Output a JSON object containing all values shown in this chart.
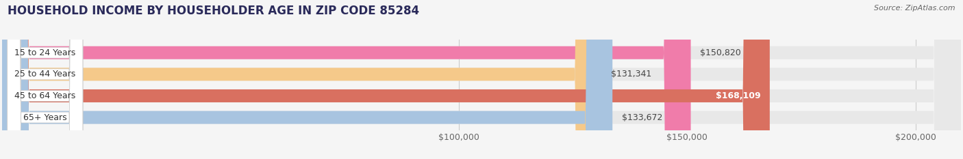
{
  "title": "HOUSEHOLD INCOME BY HOUSEHOLDER AGE IN ZIP CODE 85284",
  "source": "Source: ZipAtlas.com",
  "categories": [
    "15 to 24 Years",
    "25 to 44 Years",
    "45 to 64 Years",
    "65+ Years"
  ],
  "values": [
    150820,
    131341,
    168109,
    133672
  ],
  "labels": [
    "$150,820",
    "$131,341",
    "$168,109",
    "$133,672"
  ],
  "label_inside": [
    false,
    false,
    true,
    false
  ],
  "bar_colors": [
    "#f07caa",
    "#f5c98a",
    "#d97060",
    "#a8c4e0"
  ],
  "background_color": "#f5f5f5",
  "bar_track_color": "#e8e8e8",
  "xmin": 0,
  "xmax": 210000,
  "xticks": [
    100000,
    150000,
    200000
  ],
  "xtick_labels": [
    "$100,000",
    "$150,000",
    "$200,000"
  ],
  "title_fontsize": 12,
  "source_fontsize": 8,
  "label_fontsize": 9,
  "tick_fontsize": 9,
  "value_label_inside_color": "#ffffff",
  "value_label_outside_color": "#444444",
  "cat_label_color": "#333333"
}
